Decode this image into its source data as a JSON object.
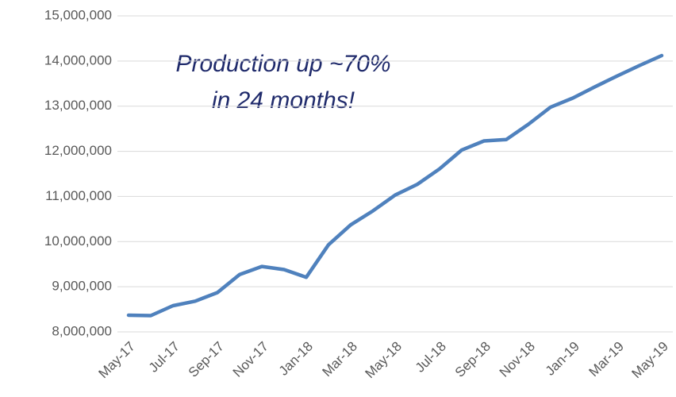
{
  "chart_data": {
    "type": "line",
    "annotation": [
      "Production up ~70%",
      "in 24 months!"
    ],
    "categories": [
      "May-17",
      null,
      "Jul-17",
      null,
      "Sep-17",
      null,
      "Nov-17",
      null,
      "Jan-18",
      null,
      "Mar-18",
      null,
      "May-18",
      null,
      "Jul-18",
      null,
      "Sep-18",
      null,
      "Nov-18",
      null,
      "Jan-19",
      null,
      "Mar-19",
      null,
      "May-19"
    ],
    "series": [
      {
        "color": "#4f81bd",
        "values": [
          8370000,
          8360000,
          8580000,
          8680000,
          8870000,
          9270000,
          9450000,
          9380000,
          9210000,
          9930000,
          10370000,
          10680000,
          11030000,
          11270000,
          11610000,
          12030000,
          12230000,
          12260000,
          12600000,
          12980000,
          13180000,
          13430000,
          13670000,
          13900000,
          14120000
        ]
      }
    ],
    "ylim": [
      8000000,
      15000000
    ],
    "yticks": [
      {
        "value": 8000000,
        "label": "8,000,000"
      },
      {
        "value": 9000000,
        "label": "9,000,000"
      },
      {
        "value": 10000000,
        "label": "10,000,000"
      },
      {
        "value": 11000000,
        "label": "11,000,000"
      },
      {
        "value": 12000000,
        "label": "12,000,000"
      },
      {
        "value": 13000000,
        "label": "13,000,000"
      },
      {
        "value": 14000000,
        "label": "14,000,000"
      },
      {
        "value": 15000000,
        "label": "15,000,000"
      }
    ],
    "grid": true
  }
}
